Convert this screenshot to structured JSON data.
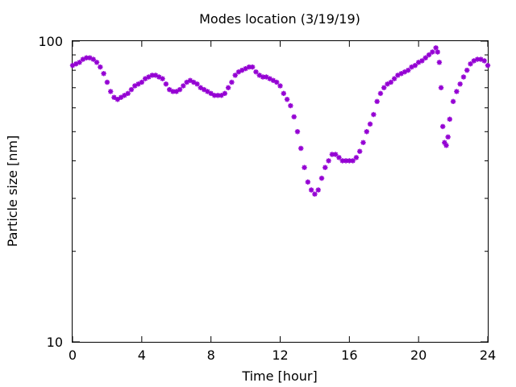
{
  "chart_data": {
    "type": "scatter",
    "title": "Modes location (3/19/19)",
    "xlabel": "Time [hour]",
    "ylabel": "Particle size [nm]",
    "xlim": [
      0,
      24
    ],
    "ylim": [
      10,
      100
    ],
    "yscale": "log",
    "grid": false,
    "legend": "none",
    "x_ticks": [
      0,
      4,
      8,
      12,
      16,
      20,
      24
    ],
    "x_tick_labels": [
      "0",
      "4",
      "8",
      "12",
      "16",
      "20",
      "24"
    ],
    "y_ticks": [
      10,
      100
    ],
    "y_tick_labels": [
      "10",
      "100"
    ],
    "y_minor_ticks": [
      20,
      30,
      40,
      50,
      60,
      70,
      80,
      90
    ],
    "marker_color": "#9400D3",
    "series": [
      {
        "x": [
          0.0,
          0.2,
          0.4,
          0.6,
          0.8,
          1.0,
          1.2,
          1.4,
          1.6,
          1.8,
          2.0,
          2.2,
          2.4,
          2.6,
          2.8,
          3.0,
          3.2,
          3.4,
          3.6,
          3.8,
          4.0,
          4.2,
          4.4,
          4.6,
          4.8,
          5.0,
          5.2,
          5.4,
          5.6,
          5.8,
          6.0,
          6.2,
          6.4,
          6.6,
          6.8,
          7.0,
          7.2,
          7.4,
          7.6,
          7.8,
          8.0,
          8.2,
          8.4,
          8.6,
          8.8,
          9.0,
          9.2,
          9.4,
          9.6,
          9.8,
          10.0,
          10.2,
          10.4,
          10.6,
          10.8,
          11.0,
          11.2,
          11.4,
          11.6,
          11.8,
          12.0,
          12.2,
          12.4,
          12.6,
          12.8,
          13.0,
          13.2,
          13.4,
          13.6,
          13.8,
          14.0,
          14.2,
          14.4,
          14.6,
          14.8,
          15.0,
          15.2,
          15.4,
          15.6,
          15.8,
          16.0,
          16.2,
          16.4,
          16.6,
          16.8,
          17.0,
          17.2,
          17.4,
          17.6,
          17.8,
          18.0,
          18.2,
          18.4,
          18.6,
          18.8,
          19.0,
          19.2,
          19.4,
          19.6,
          19.8,
          20.0,
          20.2,
          20.4,
          20.6,
          20.8,
          21.0,
          21.1,
          21.2,
          21.3,
          21.4,
          21.5,
          21.6,
          21.7,
          21.8,
          22.0,
          22.2,
          22.4,
          22.6,
          22.8,
          23.0,
          23.2,
          23.4,
          23.6,
          23.8,
          24.0
        ],
        "y": [
          83,
          84,
          85,
          87,
          88,
          88,
          87,
          85,
          82,
          78,
          73,
          68,
          65,
          64,
          65,
          66,
          67,
          69,
          71,
          72,
          73,
          75,
          76,
          77,
          77,
          76,
          75,
          72,
          69,
          68,
          68,
          69,
          71,
          73,
          74,
          73,
          72,
          70,
          69,
          68,
          67,
          66,
          66,
          66,
          67,
          70,
          73,
          77,
          79,
          80,
          81,
          82,
          82,
          79,
          77,
          76,
          76,
          75,
          74,
          73,
          71,
          67,
          64,
          61,
          56,
          50,
          44,
          38,
          34,
          32,
          31,
          32,
          35,
          38,
          40,
          42,
          42,
          41,
          40,
          40,
          40,
          40,
          41,
          43,
          46,
          50,
          53,
          57,
          63,
          67,
          70,
          72,
          73,
          75,
          77,
          78,
          79,
          80,
          82,
          83,
          85,
          86,
          88,
          90,
          92,
          95,
          92,
          85,
          70,
          52,
          46,
          45,
          48,
          55,
          63,
          68,
          72,
          76,
          80,
          84,
          86,
          87,
          87,
          86,
          83
        ]
      }
    ]
  }
}
